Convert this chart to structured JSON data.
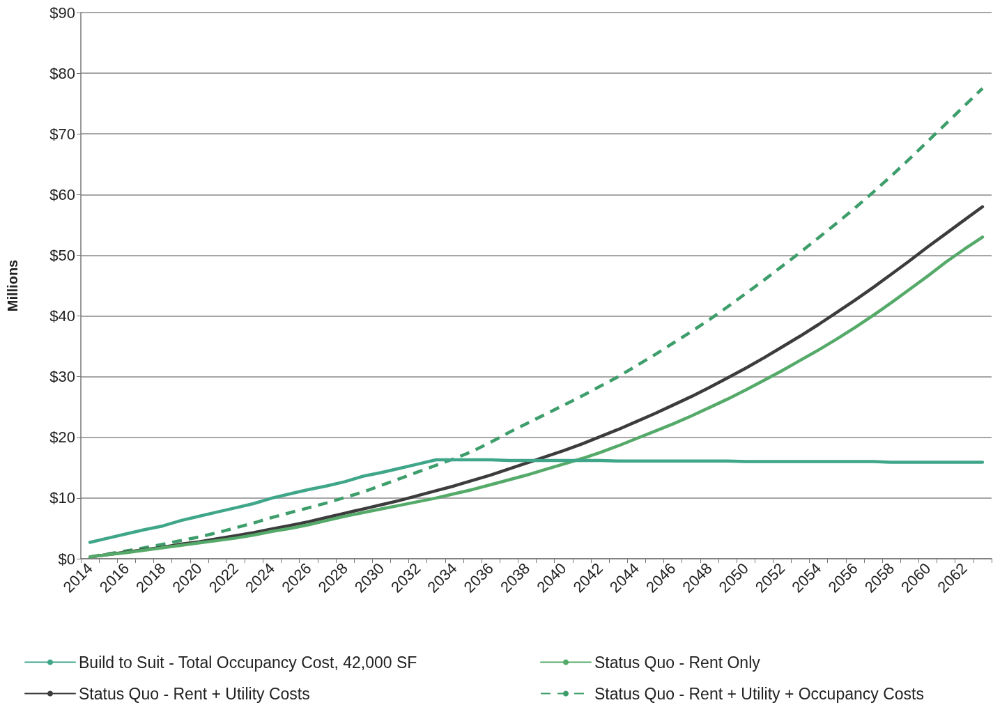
{
  "chart_data": {
    "type": "line",
    "ylabel": "Millions",
    "categories": [
      "2014",
      null,
      "2016",
      null,
      "2018",
      null,
      "2020",
      null,
      "2022",
      null,
      "2024",
      null,
      "2026",
      null,
      "2028",
      null,
      "2030",
      null,
      "2032",
      null,
      "2034",
      null,
      "2036",
      null,
      "2038",
      null,
      "2040",
      null,
      "2042",
      null,
      "2044",
      null,
      "2046",
      null,
      "2048",
      null,
      "2050",
      null,
      "2052",
      null,
      "2054",
      null,
      "2056",
      null,
      "2058",
      null,
      "2060",
      null,
      "2062",
      null
    ],
    "series": [
      {
        "name": "Build to Suit - Total Occupancy Cost, 42,000 SF",
        "color": "#3fa68a",
        "line_style": "solid",
        "values": [
          2.7,
          3.4,
          4.1,
          4.8,
          5.4,
          6.3,
          7.0,
          7.7,
          8.4,
          9.1,
          10.0,
          10.7,
          11.4,
          12.0,
          12.7,
          13.6,
          14.2,
          14.9,
          15.6,
          16.3,
          16.3,
          16.3,
          16.3,
          16.2,
          16.2,
          16.2,
          16.2,
          16.2,
          16.2,
          16.1,
          16.1,
          16.1,
          16.1,
          16.1,
          16.1,
          16.1,
          16.0,
          16.0,
          16.0,
          16.0,
          16.0,
          16.0,
          16.0,
          16.0,
          15.9,
          15.9,
          15.9,
          15.9,
          15.9,
          15.9
        ]
      },
      {
        "name": "Status Quo - Rent Only",
        "color": "#55aa6a",
        "line_style": "solid",
        "values": [
          0.3,
          0.7,
          1.0,
          1.4,
          1.8,
          2.2,
          2.6,
          3.0,
          3.4,
          3.9,
          4.5,
          5.0,
          5.6,
          6.3,
          7.0,
          7.6,
          8.2,
          8.8,
          9.4,
          10.0,
          10.7,
          11.4,
          12.2,
          13.0,
          13.8,
          14.7,
          15.6,
          16.5,
          17.5,
          18.6,
          19.8,
          21.0,
          22.2,
          23.5,
          24.9,
          26.3,
          27.8,
          29.4,
          31.0,
          32.7,
          34.4,
          36.2,
          38.1,
          40.1,
          42.2,
          44.4,
          46.6,
          48.9,
          51.0,
          53.0
        ]
      },
      {
        "name": "Status Quo - Rent + Utility Costs",
        "color": "#3c3c3c",
        "line_style": "solid",
        "values": [
          0.3,
          0.7,
          1.1,
          1.5,
          1.9,
          2.4,
          2.8,
          3.3,
          3.8,
          4.3,
          4.9,
          5.5,
          6.1,
          6.8,
          7.5,
          8.2,
          8.9,
          9.6,
          10.4,
          11.2,
          12.0,
          12.9,
          13.8,
          14.8,
          15.8,
          16.8,
          17.8,
          18.9,
          20.1,
          21.3,
          22.6,
          23.9,
          25.3,
          26.7,
          28.2,
          29.8,
          31.4,
          33.1,
          34.9,
          36.7,
          38.6,
          40.6,
          42.6,
          44.7,
          46.9,
          49.1,
          51.4,
          53.6,
          55.8,
          58.0
        ]
      },
      {
        "name": "Status Quo - Rent + Utility + Occupancy Costs",
        "color": "#3e9e6b",
        "line_style": "dashed",
        "values": [
          0.3,
          0.8,
          1.3,
          1.8,
          2.4,
          3.0,
          3.6,
          4.3,
          5.1,
          5.9,
          6.8,
          7.6,
          8.4,
          9.2,
          10.1,
          11.0,
          12.1,
          13.2,
          14.3,
          15.4,
          16.5,
          17.7,
          19.2,
          20.8,
          22.3,
          23.8,
          25.3,
          26.8,
          28.4,
          30.0,
          31.8,
          33.6,
          35.5,
          37.4,
          39.4,
          41.5,
          43.7,
          45.9,
          48.2,
          50.5,
          52.9,
          55.3,
          57.8,
          60.4,
          63.1,
          65.9,
          68.8,
          71.7,
          74.6,
          77.5
        ]
      }
    ],
    "ylim": [
      0,
      90
    ],
    "yticks": [
      {
        "value": 0,
        "label": "$0"
      },
      {
        "value": 10,
        "label": "$10"
      },
      {
        "value": 20,
        "label": "$20"
      },
      {
        "value": 30,
        "label": "$30"
      },
      {
        "value": 40,
        "label": "$40"
      },
      {
        "value": 50,
        "label": "$50"
      },
      {
        "value": 60,
        "label": "$60"
      },
      {
        "value": 70,
        "label": "$70"
      },
      {
        "value": 80,
        "label": "$80"
      },
      {
        "value": 90,
        "label": "$90"
      }
    ],
    "grid": "y",
    "legend": "bottom",
    "marker": "none"
  }
}
